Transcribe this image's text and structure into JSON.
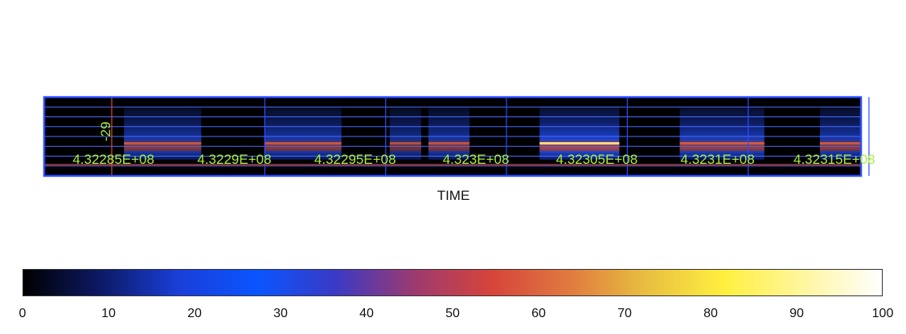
{
  "chart_data": {
    "type": "heatmap",
    "xlabel": "TIME",
    "y_tick_label": "-29",
    "x_tick_labels": [
      "4.32285E+08",
      "4.3229E+08",
      "4.32295E+08",
      "4.323E+08",
      "4.32305E+08",
      "4.3231E+08",
      "4.32315E+08"
    ],
    "x_ticks": [
      432285000,
      432290000,
      432295000,
      432300000,
      432305000,
      432310000,
      432315000
    ],
    "xlim": [
      432282200,
      432316000
    ],
    "data_segments": [
      {
        "start": 432285500,
        "end": 432288700,
        "intensity": 0.55
      },
      {
        "start": 432291300,
        "end": 432294500,
        "intensity": 0.55
      },
      {
        "start": 432296500,
        "end": 432297800,
        "intensity": 0.35
      },
      {
        "start": 432298100,
        "end": 432299800,
        "intensity": 0.5
      },
      {
        "start": 432302700,
        "end": 432306000,
        "intensity": 0.9
      },
      {
        "start": 432308500,
        "end": 432312000,
        "intensity": 0.7
      },
      {
        "start": 432314300,
        "end": 432316000,
        "intensity": 0.6
      }
    ],
    "colorbar": {
      "min": 0,
      "max": 100,
      "ticks": [
        "0",
        "10",
        "20",
        "30",
        "40",
        "50",
        "60",
        "70",
        "80",
        "90",
        "100"
      ],
      "colors": [
        "#000000",
        "#0d1a66",
        "#1a3fd9",
        "#0a55ff",
        "#3a3ac4",
        "#9c3a70",
        "#d6443a",
        "#e07a40",
        "#e8c040",
        "#fff040",
        "#fff6a0",
        "#ffffff"
      ]
    },
    "colors": {
      "frame": "#2a4bff",
      "annotation": "#a6f03c",
      "marker_line": "#e04a3a"
    }
  }
}
